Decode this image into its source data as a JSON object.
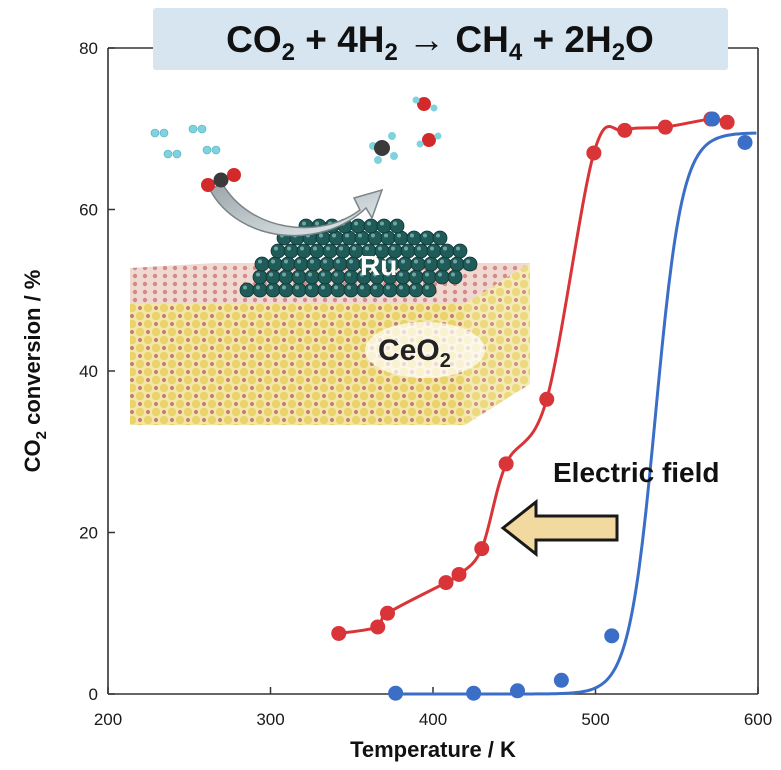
{
  "chart_data": {
    "type": "line",
    "title": "CO",
    "title_parts": {
      "sub1": "2",
      "mid1": " + 4H",
      "sub2": "2",
      "mid2": " → CH",
      "sub3": "4",
      "mid3": " + 2H",
      "sub4": "2",
      "end": "O"
    },
    "xlabel": "Temperature / K",
    "ylabel_parts": {
      "a": "CO",
      "sub": "2",
      "b": " conversion / %"
    },
    "xlim": [
      200,
      600
    ],
    "ylim": [
      0,
      80
    ],
    "x_ticks": [
      "200",
      "300",
      "400",
      "500",
      "600"
    ],
    "y_ticks": [
      "0",
      "20",
      "40",
      "60",
      "80"
    ],
    "grid": false,
    "series": [
      {
        "color": "#d93437",
        "points": [
          [
            342,
            7.5
          ],
          [
            366,
            8.3
          ],
          [
            372,
            10.0
          ],
          [
            408,
            13.8
          ],
          [
            416,
            14.8
          ],
          [
            430,
            18.0
          ],
          [
            445,
            28.5
          ],
          [
            470,
            36.5
          ],
          [
            499,
            67.0
          ],
          [
            518,
            69.8
          ],
          [
            543,
            70.2
          ],
          [
            571,
            71.2
          ],
          [
            581,
            70.8
          ]
        ]
      },
      {
        "color": "#3a6ec7",
        "points": [
          [
            377,
            0.1
          ],
          [
            425,
            0.1
          ],
          [
            452,
            0.4
          ],
          [
            479,
            1.7
          ],
          [
            510,
            7.2
          ],
          [
            572,
            71.2
          ],
          [
            592,
            68.3
          ]
        ]
      }
    ],
    "annotations": [
      {
        "text": "Electric field",
        "arrow": "left",
        "arrow_color": "#f2d9a0"
      }
    ],
    "inset": {
      "labels": {
        "ru": "Ru",
        "support": "CeO",
        "support_sub": "2"
      }
    }
  }
}
